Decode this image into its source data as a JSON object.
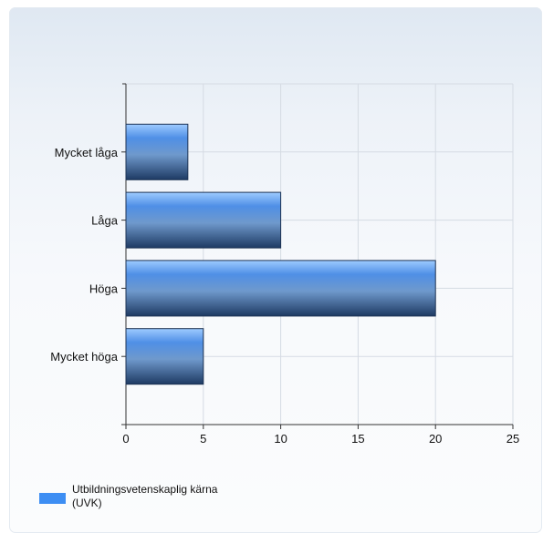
{
  "chart_data": {
    "type": "bar",
    "orientation": "horizontal",
    "categories": [
      "Mycket låga",
      "Låga",
      "Höga",
      "Mycket höga"
    ],
    "series": [
      {
        "name": "Utbildningsvetenskaplig kärna (UVK)",
        "values": [
          4,
          10,
          20,
          5
        ]
      }
    ],
    "xlim": [
      0,
      25
    ],
    "xticks": [
      0,
      5,
      10,
      15,
      20,
      25
    ],
    "title": "",
    "xlabel": "",
    "ylabel": "",
    "grid": true,
    "legend_position": "bottom-left",
    "colors": {
      "bar_light": "#8fc0ff",
      "bar_mid": "#3f7fd6",
      "bar_dark": "#1e3c66"
    }
  },
  "legend": {
    "line1": "Utbildningsvetenskaplig kärna",
    "line2": "(UVK)"
  }
}
